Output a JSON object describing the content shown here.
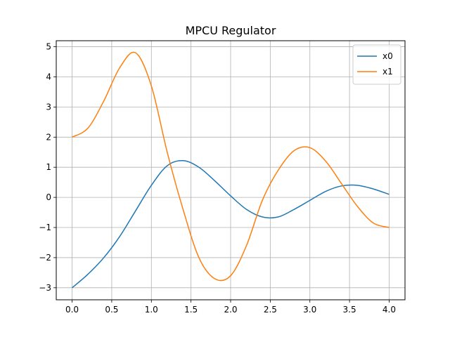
{
  "chart_data": {
    "type": "line",
    "title": "MPCU Regulator",
    "xlabel": "",
    "ylabel": "",
    "xlim": [
      -0.2,
      4.2
    ],
    "ylim": [
      -3.4,
      5.2
    ],
    "grid": true,
    "legend_position": "top-right",
    "x_ticks": [
      0.0,
      0.5,
      1.0,
      1.5,
      2.0,
      2.5,
      3.0,
      3.5,
      4.0
    ],
    "x_tick_labels": [
      "0.0",
      "0.5",
      "1.0",
      "1.5",
      "2.0",
      "2.5",
      "3.0",
      "3.5",
      "4.0"
    ],
    "y_ticks": [
      -3,
      -2,
      -1,
      0,
      1,
      2,
      3,
      4,
      5
    ],
    "y_tick_labels": [
      "−3",
      "−2",
      "−1",
      "0",
      "1",
      "2",
      "3",
      "4",
      "5"
    ],
    "x": [
      0.0,
      0.2,
      0.4,
      0.6,
      0.8,
      1.0,
      1.2,
      1.4,
      1.6,
      1.8,
      2.0,
      2.2,
      2.4,
      2.6,
      2.8,
      3.0,
      3.2,
      3.4,
      3.6,
      3.8,
      4.0
    ],
    "series": [
      {
        "name": "x0",
        "color": "#1f77b4",
        "values": [
          -3.0,
          -2.55,
          -2.0,
          -1.3,
          -0.45,
          0.4,
          1.05,
          1.22,
          1.0,
          0.55,
          0.05,
          -0.4,
          -0.65,
          -0.65,
          -0.4,
          -0.1,
          0.2,
          0.38,
          0.4,
          0.28,
          0.1
        ]
      },
      {
        "name": "x1",
        "color": "#ff7f0e",
        "values": [
          2.0,
          2.3,
          3.2,
          4.3,
          4.8,
          3.7,
          1.5,
          -0.4,
          -2.0,
          -2.7,
          -2.6,
          -1.6,
          -0.1,
          0.9,
          1.55,
          1.65,
          1.2,
          0.45,
          -0.3,
          -0.85,
          -1.0
        ]
      }
    ]
  }
}
